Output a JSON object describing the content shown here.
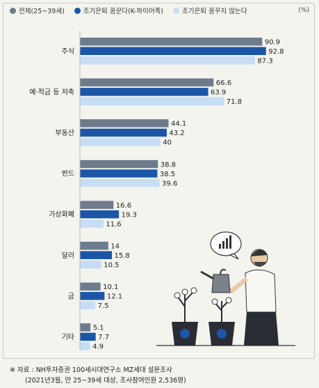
{
  "unit": "(%)",
  "colors": {
    "total": "#6d7b8c",
    "fire": "#1b56a8",
    "nofire": "#c7ddf3",
    "axis": "#b8bbb4"
  },
  "footnote_1": "※ 자료 : NH투자증권 100세시대연구소 MZ세대 설문조사",
  "footnote_2": "(2021년3월, 만 25~39세 대상, 조사참여인원 2,536명)",
  "chart_data": {
    "type": "bar",
    "orientation": "horizontal",
    "categories": [
      "주식",
      "예·적금 등 저축",
      "부동산",
      "펀드",
      "가상화폐",
      "달러",
      "금",
      "기타"
    ],
    "series": [
      {
        "name": "전체(25~39세)",
        "values": [
          90.9,
          66.6,
          44.1,
          38.8,
          16.6,
          14,
          10.1,
          5.1
        ],
        "labels": [
          "90.9",
          "66.6",
          "44.1",
          "38.8",
          "16.6",
          "14",
          "10.1",
          "5.1"
        ]
      },
      {
        "name": "조기은퇴 꿈꾼다(K-파이어족)",
        "values": [
          92.8,
          63.9,
          43.2,
          38.5,
          19.3,
          15.8,
          12.1,
          7.7
        ],
        "labels": [
          "92.8",
          "63.9",
          "43.2",
          "38.5",
          "19.3",
          "15.8",
          "12.1",
          "7.7"
        ]
      },
      {
        "name": "조기은퇴 꿈꾸지 않는다",
        "values": [
          87.3,
          71.8,
          40,
          39.6,
          11.6,
          10.5,
          7.5,
          4.9
        ],
        "labels": [
          "87.3",
          "71.8",
          "40",
          "39.6",
          "11.6",
          "10.5",
          "7.5",
          "4.9"
        ]
      }
    ],
    "xlim": [
      0,
      100
    ],
    "grid": false,
    "legend_position": "top"
  }
}
